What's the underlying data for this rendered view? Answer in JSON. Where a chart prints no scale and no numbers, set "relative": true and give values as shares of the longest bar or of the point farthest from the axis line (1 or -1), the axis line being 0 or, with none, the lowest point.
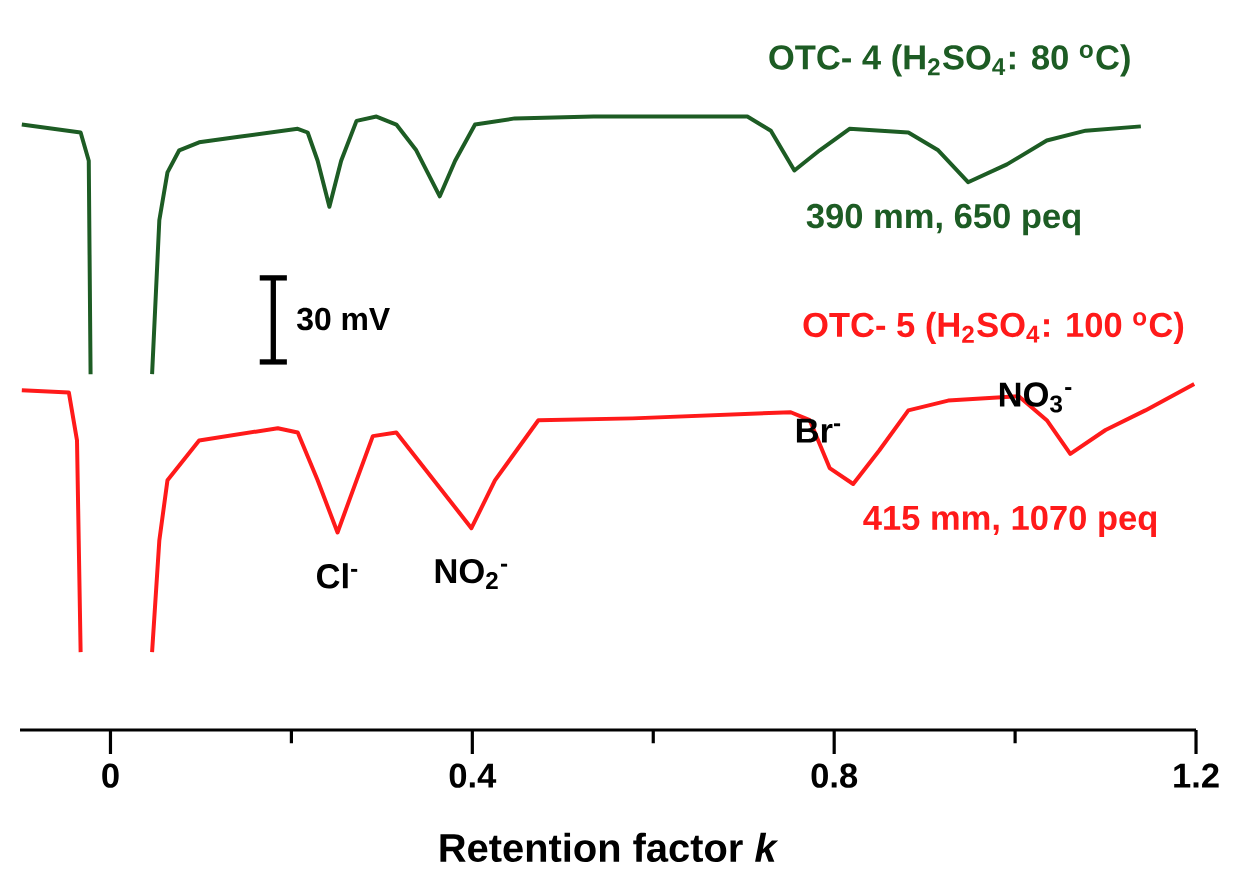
{
  "chart_data": {
    "type": "line",
    "relative": true,
    "xlabel": "Retention factor *k*",
    "xlim": [
      -0.1,
      1.2
    ],
    "xticks": [
      {
        "value": 0,
        "label": "0"
      },
      {
        "value": 0.2,
        "label": null
      },
      {
        "value": 0.4,
        "label": "0.4"
      },
      {
        "value": 0.6,
        "label": null
      },
      {
        "value": 0.8,
        "label": "0.8"
      },
      {
        "value": 1.0,
        "label": null
      },
      {
        "value": 1.2,
        "label": "1.2"
      }
    ],
    "series": [
      {
        "name": "OTC- 4 (H$_{2}$SO$_{4}$: 80 $^{o}$C)",
        "color": "#1d5c24",
        "x": [
          -0.098,
          -0.033,
          -0.024,
          -0.022,
          null,
          0.046,
          0.054,
          0.063,
          0.076,
          0.098,
          0.142,
          0.207,
          0.218,
          0.229,
          0.242,
          0.255,
          0.272,
          0.294,
          0.316,
          0.338,
          0.364,
          0.381,
          0.403,
          0.447,
          0.534,
          0.704,
          0.73,
          0.756,
          0.784,
          0.817,
          0.882,
          0.915,
          0.948,
          0.991,
          1.035,
          1.078,
          1.139
        ],
        "values": [
          0.987,
          0.974,
          0.928,
          0.58,
          null,
          0.58,
          0.831,
          0.909,
          0.945,
          0.958,
          0.967,
          0.98,
          0.974,
          0.928,
          0.853,
          0.928,
          0.993,
          1.0,
          0.987,
          0.945,
          0.87,
          0.928,
          0.987,
          0.997,
          1.0,
          1.0,
          0.977,
          0.912,
          0.945,
          0.98,
          0.974,
          0.945,
          0.893,
          0.922,
          0.961,
          0.977,
          0.984
        ]
      },
      {
        "name": "OTC- 5 (H$_{2}$SO$_{4}$: 100 $^{o}$C)",
        "color": "#ff1a1a",
        "x": [
          -0.098,
          -0.046,
          -0.037,
          -0.033,
          null,
          0.046,
          0.054,
          0.063,
          0.098,
          0.185,
          0.207,
          0.229,
          0.251,
          0.272,
          0.29,
          0.316,
          0.349,
          0.399,
          0.425,
          0.473,
          0.577,
          0.752,
          0.773,
          0.795,
          0.821,
          0.85,
          0.882,
          0.926,
          1.004,
          1.035,
          1.061,
          1.1,
          1.144,
          1.198
        ],
        "values": [
          0.554,
          0.55,
          0.472,
          0.127,
          null,
          0.127,
          0.309,
          0.407,
          0.472,
          0.492,
          0.485,
          0.407,
          0.322,
          0.407,
          0.479,
          0.485,
          0.423,
          0.329,
          0.407,
          0.505,
          0.508,
          0.518,
          0.505,
          0.427,
          0.401,
          0.456,
          0.521,
          0.537,
          0.544,
          0.505,
          0.45,
          0.489,
          0.521,
          0.564
        ]
      }
    ],
    "annotations": [
      "390 mm, 650 peq",
      "415 mm, 1070 peq",
      "30 mV",
      {
        "text": "Cl$^{-}$",
        "x": 0.251,
        "y": 0.322
      },
      {
        "text": "NO$_{2}$$^{-}$",
        "x": 0.399,
        "y": 0.329
      },
      {
        "text": "Br$^{-}$",
        "x": 0.821,
        "y": 0.401
      },
      {
        "text": "NO$_{3}$$^{-}$",
        "x": 1.061,
        "y": 0.45
      }
    ]
  }
}
